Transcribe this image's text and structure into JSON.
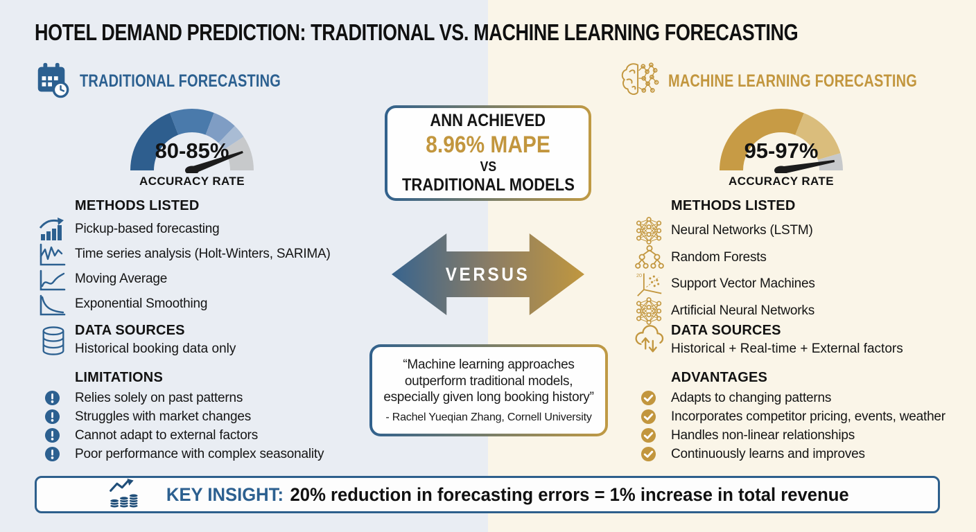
{
  "title": "HOTEL DEMAND PREDICTION: TRADITIONAL VS. MACHINE LEARNING FORECASTING",
  "colors": {
    "blue": "#2c6090",
    "gold": "#c2963e",
    "left_bg": "#e9edf3",
    "right_bg": "#faf5e8"
  },
  "left": {
    "header": {
      "icon": "calendar-clock-icon",
      "label": "TRADITIONAL FORECASTING"
    },
    "gauge": {
      "value": "80-85%",
      "caption": "ACCURACY RATE",
      "needle_deg": 20,
      "segments": [
        {
          "color": "#2e5e8e",
          "frac": 0.383
        },
        {
          "color": "#4a7aab",
          "frac": 0.233
        },
        {
          "color": "#7f9dc4",
          "frac": 0.128
        },
        {
          "color": "#a9bcd4",
          "frac": 0.072
        },
        {
          "color": "#c7c9cb",
          "frac": 0.184
        }
      ]
    },
    "methods": {
      "heading": "METHODS LISTED",
      "items": [
        {
          "icon": "bar-chart-trend-icon",
          "label": "Pickup-based forecasting"
        },
        {
          "icon": "time-series-icon",
          "label": "Time series analysis (Holt-Winters, SARIMA)"
        },
        {
          "icon": "moving-average-icon",
          "label": "Moving Average"
        },
        {
          "icon": "exponential-smoothing-icon",
          "label": "Exponential Smoothing"
        }
      ]
    },
    "data_sources": {
      "heading": "DATA SOURCES",
      "icon": "database-icon",
      "text": "Historical booking data only"
    },
    "limitations": {
      "heading": "LIMITATIONS",
      "icon": "exclamation-circle-icon",
      "items": [
        "Relies solely on past patterns",
        "Struggles with market changes",
        "Cannot adapt to external factors",
        "Poor performance with complex seasonality"
      ]
    }
  },
  "center": {
    "highlight": {
      "line1": "ANN ACHIEVED",
      "line2": "8.96% MAPE",
      "line3": "VS",
      "line4": "TRADITIONAL MODELS"
    },
    "versus": "VERSUS",
    "quote": {
      "text": "“Machine learning approaches outperform traditional models, especially given long booking history”",
      "attribution": "- Rachel Yueqian Zhang, Cornell University"
    }
  },
  "right": {
    "header": {
      "icon": "brain-network-icon",
      "label": "MACHINE LEARNING FORECASTING"
    },
    "gauge": {
      "value": "95-97%",
      "caption": "ACCURACY RATE",
      "needle_deg": 10,
      "segments": [
        {
          "color": "#c79b45",
          "frac": 0.62
        },
        {
          "color": "#dabd7c",
          "frac": 0.29
        },
        {
          "color": "#c7c9cb",
          "frac": 0.09
        }
      ]
    },
    "methods": {
      "heading": "METHODS LISTED",
      "items": [
        {
          "icon": "neural-network-icon",
          "label": "Neural Networks (LSTM)"
        },
        {
          "icon": "random-forest-icon",
          "label": "Random Forests"
        },
        {
          "icon": "svm-plot-icon",
          "label": "Support Vector Machines"
        },
        {
          "icon": "artificial-neural-network-icon",
          "label": "Artificial Neural Networks"
        }
      ]
    },
    "data_sources": {
      "heading": "DATA SOURCES",
      "icon": "cloud-sync-icon",
      "text": "Historical + Real-time + External factors"
    },
    "advantages": {
      "heading": "ADVANTAGES",
      "icon": "check-circle-icon",
      "items": [
        "Adapts to changing patterns",
        "Incorporates competitor pricing, events, weather",
        "Handles non-linear relationships",
        "Continuously learns and improves"
      ]
    }
  },
  "footer": {
    "icon": "coins-growth-icon",
    "prefix": "KEY INSIGHT:",
    "text": "20% reduction in forecasting errors = 1% increase in total revenue"
  }
}
